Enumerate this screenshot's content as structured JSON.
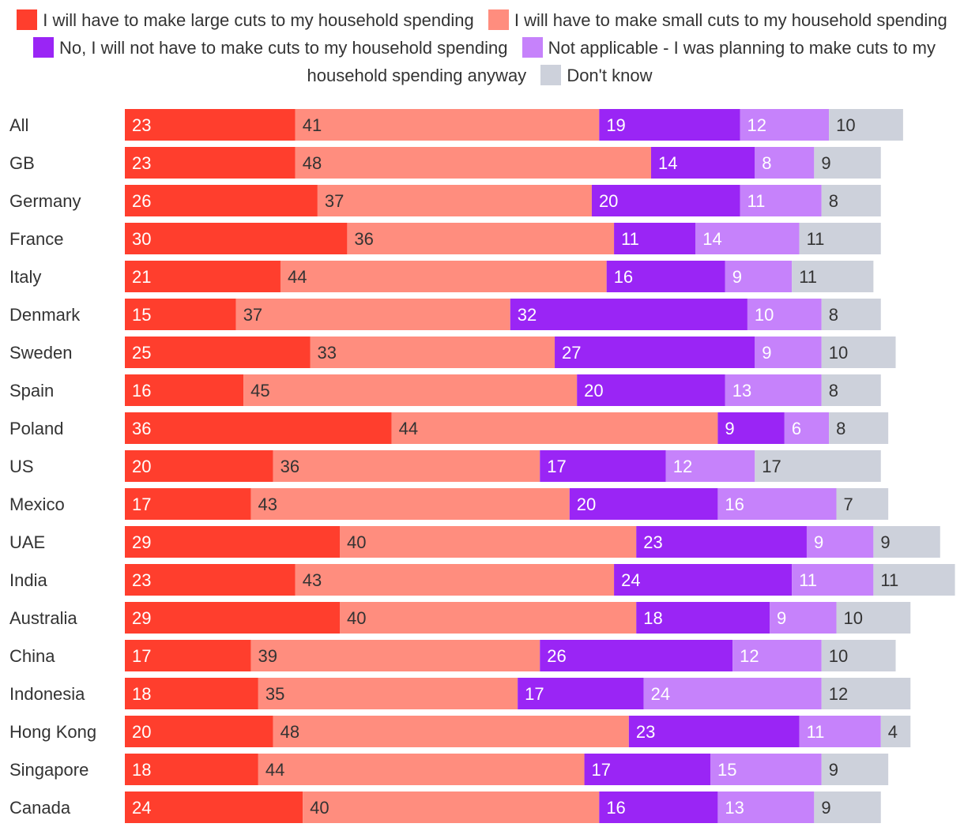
{
  "chart_data": {
    "type": "bar",
    "orientation": "horizontal",
    "stacked": true,
    "legend_position": "top",
    "categories": [
      "All",
      "GB",
      "Germany",
      "France",
      "Italy",
      "Denmark",
      "Sweden",
      "Spain",
      "Poland",
      "US",
      "Mexico",
      "UAE",
      "India",
      "Australia",
      "China",
      "Indonesia",
      "Hong Kong",
      "Singapore",
      "Canada"
    ],
    "series": [
      {
        "name": "I will have to make large cuts to my household spending",
        "color": "#ff3e2d",
        "values": [
          23,
          23,
          26,
          30,
          21,
          15,
          25,
          16,
          36,
          20,
          17,
          29,
          23,
          29,
          17,
          18,
          20,
          18,
          24
        ]
      },
      {
        "name": "I will have to make small cuts to my household spending",
        "color": "#ff8d7e",
        "values": [
          41,
          48,
          37,
          36,
          44,
          37,
          33,
          45,
          44,
          36,
          43,
          40,
          43,
          40,
          39,
          35,
          48,
          44,
          40
        ]
      },
      {
        "name": "No, I will not have to make cuts to my household spending",
        "color": "#9a25f5",
        "values": [
          19,
          14,
          20,
          11,
          16,
          32,
          27,
          20,
          9,
          17,
          20,
          23,
          24,
          18,
          26,
          17,
          23,
          17,
          16
        ]
      },
      {
        "name": "Not applicable - I was planning to make cuts to my household spending anyway",
        "color": "#c682fb",
        "values": [
          12,
          8,
          11,
          14,
          9,
          10,
          9,
          13,
          6,
          12,
          16,
          9,
          11,
          9,
          12,
          24,
          11,
          15,
          13
        ]
      },
      {
        "name": "Don't know",
        "color": "#cdd1db",
        "values": [
          10,
          9,
          8,
          11,
          11,
          8,
          10,
          8,
          8,
          17,
          7,
          9,
          11,
          10,
          10,
          12,
          4,
          9,
          9
        ]
      }
    ],
    "label_colors": [
      "#ffffff",
      "#333333",
      "#ffffff",
      "#ffffff",
      "#333333"
    ],
    "title": "",
    "xlabel": "",
    "ylabel": "",
    "xlim": [
      0,
      112
    ],
    "grid": false
  }
}
